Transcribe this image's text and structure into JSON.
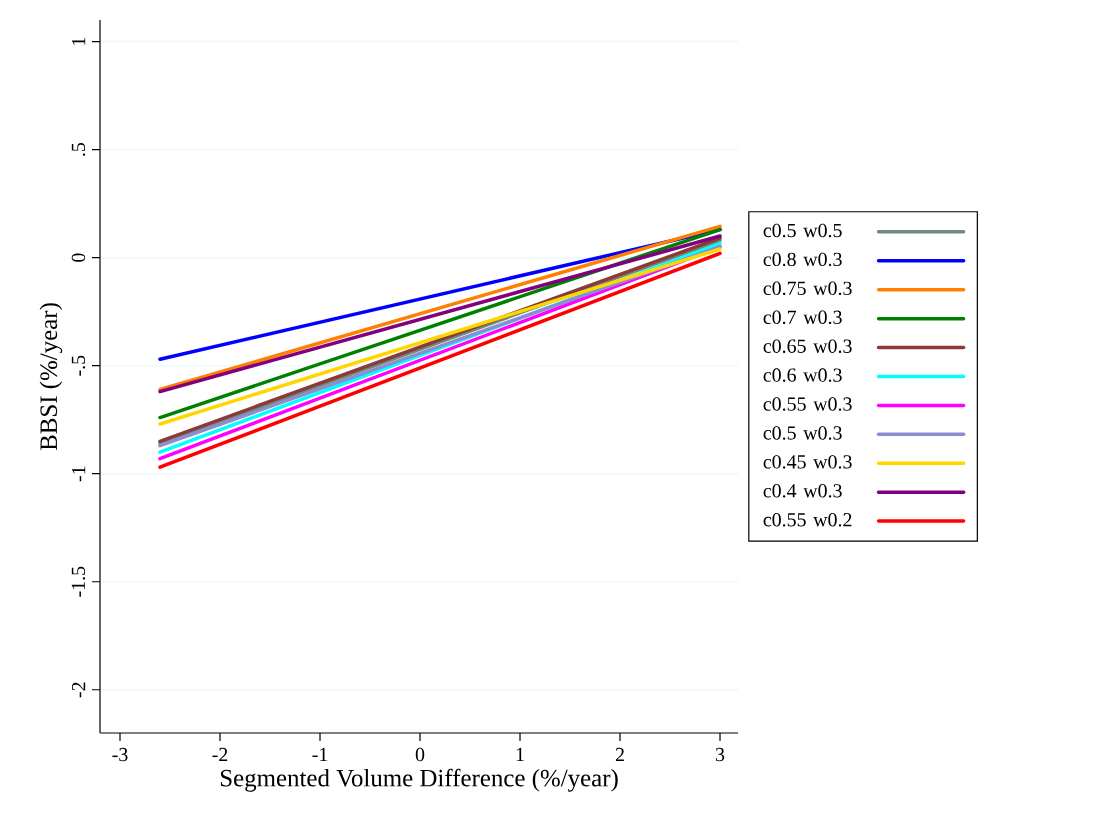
{
  "chart_data": {
    "type": "line",
    "xlabel": "Segmented Volume Difference (%/year)",
    "ylabel": "BBSI (%/year)",
    "x": [
      -2.6,
      3
    ],
    "series": [
      {
        "name": "c0.5 w0.5",
        "color": "#6f8c7a",
        "values": [
          -0.86,
          0.08
        ]
      },
      {
        "name": "c0.8 w0.3",
        "color": "#0000ff",
        "values": [
          -0.47,
          0.13
        ]
      },
      {
        "name": "c0.75 w0.3",
        "color": "#ff7f00",
        "values": [
          -0.61,
          0.145
        ]
      },
      {
        "name": "c0.7 w0.3",
        "color": "#008000",
        "values": [
          -0.74,
          0.13
        ]
      },
      {
        "name": "c0.65 w0.3",
        "color": "#8b3a3a",
        "values": [
          -0.85,
          0.09
        ]
      },
      {
        "name": "c0.6 w0.3",
        "color": "#00ffff",
        "values": [
          -0.9,
          0.065
        ]
      },
      {
        "name": "c0.55 w0.3",
        "color": "#ff00ff",
        "values": [
          -0.93,
          0.05
        ]
      },
      {
        "name": "c0.5 w0.3",
        "color": "#8c8cd0",
        "values": [
          -0.87,
          0.05
        ]
      },
      {
        "name": "c0.45 w0.3",
        "color": "#ffd700",
        "values": [
          -0.77,
          0.04
        ]
      },
      {
        "name": "c0.4 w0.3",
        "color": "#800080",
        "values": [
          -0.62,
          0.1
        ]
      },
      {
        "name": "c0.55 w0.2",
        "color": "#ff0000",
        "values": [
          -0.97,
          0.02
        ]
      }
    ],
    "xlim": [
      -3.2,
      3.18
    ],
    "ylim": [
      -2.2,
      1.1
    ],
    "xticks": [
      -3,
      -2,
      -1,
      0,
      1,
      2,
      3
    ],
    "yticks": [
      1,
      {
        "value": 0.5,
        "label": ".5"
      },
      0,
      {
        "value": -0.5,
        "label": "-.5"
      },
      -1,
      -1.5,
      -2
    ],
    "grid": "y",
    "legend": "right",
    "marker": "none",
    "line_style": "solid"
  }
}
